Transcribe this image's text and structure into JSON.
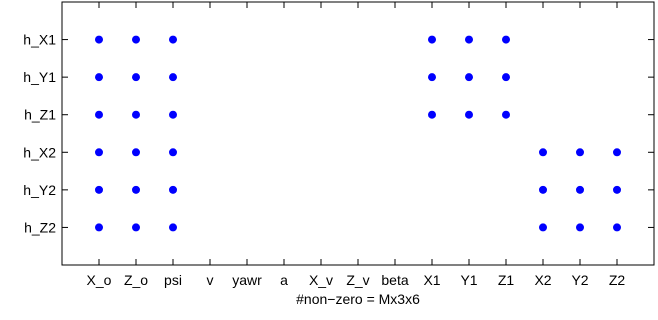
{
  "chart_data": {
    "type": "scatter",
    "title": "",
    "xlabel": "#non−zero = Mx3x6",
    "ylabel": "",
    "x_categories": [
      "X_o",
      "Z_o",
      "psi",
      "v",
      "yawr",
      "a",
      "X_v",
      "Z_v",
      "beta",
      "X1",
      "Y1",
      "Z1",
      "X2",
      "Y2",
      "Z2"
    ],
    "y_categories": [
      "h_X1",
      "h_Y1",
      "h_Z1",
      "h_X2",
      "h_Y2",
      "h_Z2"
    ],
    "xlim": [
      0,
      16
    ],
    "ylim": [
      0,
      7
    ],
    "grid": false,
    "marker_color": "#0000ff",
    "points": [
      {
        "x": "X_o",
        "y": "h_X1"
      },
      {
        "x": "Z_o",
        "y": "h_X1"
      },
      {
        "x": "psi",
        "y": "h_X1"
      },
      {
        "x": "X1",
        "y": "h_X1"
      },
      {
        "x": "Y1",
        "y": "h_X1"
      },
      {
        "x": "Z1",
        "y": "h_X1"
      },
      {
        "x": "X_o",
        "y": "h_Y1"
      },
      {
        "x": "Z_o",
        "y": "h_Y1"
      },
      {
        "x": "psi",
        "y": "h_Y1"
      },
      {
        "x": "X1",
        "y": "h_Y1"
      },
      {
        "x": "Y1",
        "y": "h_Y1"
      },
      {
        "x": "Z1",
        "y": "h_Y1"
      },
      {
        "x": "X_o",
        "y": "h_Z1"
      },
      {
        "x": "Z_o",
        "y": "h_Z1"
      },
      {
        "x": "psi",
        "y": "h_Z1"
      },
      {
        "x": "X1",
        "y": "h_Z1"
      },
      {
        "x": "Y1",
        "y": "h_Z1"
      },
      {
        "x": "Z1",
        "y": "h_Z1"
      },
      {
        "x": "X_o",
        "y": "h_X2"
      },
      {
        "x": "Z_o",
        "y": "h_X2"
      },
      {
        "x": "psi",
        "y": "h_X2"
      },
      {
        "x": "X2",
        "y": "h_X2"
      },
      {
        "x": "Y2",
        "y": "h_X2"
      },
      {
        "x": "Z2",
        "y": "h_X2"
      },
      {
        "x": "X_o",
        "y": "h_Y2"
      },
      {
        "x": "Z_o",
        "y": "h_Y2"
      },
      {
        "x": "psi",
        "y": "h_Y2"
      },
      {
        "x": "X2",
        "y": "h_Y2"
      },
      {
        "x": "Y2",
        "y": "h_Y2"
      },
      {
        "x": "Z2",
        "y": "h_Y2"
      },
      {
        "x": "X_o",
        "y": "h_Z2"
      },
      {
        "x": "Z_o",
        "y": "h_Z2"
      },
      {
        "x": "psi",
        "y": "h_Z2"
      },
      {
        "x": "X2",
        "y": "h_Z2"
      },
      {
        "x": "Y2",
        "y": "h_Z2"
      },
      {
        "x": "Z2",
        "y": "h_Z2"
      }
    ]
  }
}
